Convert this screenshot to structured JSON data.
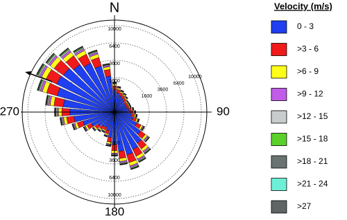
{
  "chart_data": {
    "type": "windrose",
    "direction_labels": {
      "north": "N",
      "east": "90",
      "south": "180",
      "west": "270"
    },
    "legend_title": "Velocity (m/s)",
    "x": [
      0,
      10,
      20,
      30,
      40,
      50,
      60,
      70,
      80,
      90,
      100,
      110,
      120,
      130,
      140,
      150,
      160,
      170,
      180,
      190,
      200,
      210,
      220,
      230,
      240,
      250,
      260,
      270,
      280,
      290,
      300,
      310,
      320,
      330,
      340,
      350
    ],
    "rlim": [
      0,
      10000
    ],
    "rscale": "sqrt",
    "rticks": [
      1600,
      3600,
      6400,
      10000
    ],
    "grid": true,
    "series": [
      {
        "name": "0 - 3",
        "color": "#1f3ff0",
        "values": [
          660,
          495,
          385,
          330,
          275,
          220,
          220,
          220,
          275,
          330,
          385,
          495,
          825,
          1375,
          1980,
          2310,
          2640,
          2090,
          1430,
          880,
          495,
          385,
          440,
          550,
          880,
          1430,
          2200,
          2640,
          3520,
          4730,
          5500,
          5280,
          4620,
          3960,
          3080,
          1760
        ]
      },
      {
        "name": ">3 - 6",
        "color": "#f01a1a",
        "values": [
          264,
          198,
          154,
          132,
          110,
          88,
          88,
          88,
          110,
          132,
          154,
          198,
          330,
          550,
          792,
          924,
          1056,
          836,
          572,
          352,
          198,
          154,
          176,
          220,
          352,
          572,
          880,
          1056,
          1408,
          1892,
          2200,
          2112,
          1848,
          1584,
          1232,
          704
        ]
      },
      {
        "name": ">6 - 9",
        "color": "#ffff1a",
        "values": [
          120,
          90,
          70,
          60,
          50,
          40,
          40,
          40,
          50,
          60,
          70,
          90,
          150,
          250,
          360,
          420,
          480,
          380,
          260,
          160,
          90,
          70,
          80,
          100,
          160,
          260,
          400,
          480,
          640,
          860,
          1000,
          960,
          840,
          720,
          560,
          320
        ]
      },
      {
        "name": ">9 - 12",
        "color": "#c05ce8",
        "values": [
          60,
          45,
          35,
          30,
          25,
          20,
          20,
          20,
          25,
          30,
          35,
          45,
          75,
          125,
          180,
          210,
          240,
          190,
          130,
          80,
          45,
          35,
          40,
          50,
          80,
          130,
          200,
          240,
          320,
          430,
          500,
          480,
          420,
          360,
          280,
          160
        ]
      },
      {
        "name": ">12 - 15",
        "color": "#c8cccc",
        "values": [
          36,
          27,
          21,
          18,
          15,
          12,
          12,
          12,
          15,
          18,
          21,
          27,
          45,
          75,
          108,
          126,
          144,
          114,
          78,
          48,
          27,
          21,
          24,
          30,
          48,
          78,
          120,
          144,
          192,
          258,
          300,
          288,
          252,
          216,
          168,
          96
        ]
      },
      {
        "name": ">15 - 18",
        "color": "#5ad12a",
        "values": [
          24,
          18,
          14,
          12,
          10,
          8,
          8,
          8,
          10,
          12,
          14,
          18,
          30,
          50,
          72,
          84,
          96,
          76,
          52,
          32,
          18,
          14,
          16,
          20,
          32,
          52,
          80,
          96,
          128,
          172,
          200,
          192,
          168,
          144,
          112,
          64
        ]
      },
      {
        "name": ">18 - 21",
        "color": "#6b7272",
        "values": [
          18,
          14,
          11,
          9,
          8,
          6,
          6,
          6,
          8,
          9,
          11,
          14,
          23,
          38,
          54,
          63,
          72,
          57,
          39,
          24,
          14,
          11,
          12,
          15,
          24,
          39,
          60,
          72,
          96,
          129,
          150,
          144,
          126,
          108,
          84,
          48
        ]
      },
      {
        "name": ">21 - 24",
        "color": "#6ef0d8",
        "values": [
          6,
          5,
          4,
          3,
          3,
          2,
          2,
          2,
          3,
          3,
          4,
          5,
          8,
          13,
          18,
          21,
          24,
          19,
          13,
          8,
          5,
          4,
          4,
          5,
          8,
          13,
          20,
          24,
          32,
          43,
          50,
          48,
          42,
          36,
          28,
          16
        ]
      },
      {
        "name": ">27",
        "color": "#5f6464",
        "values": [
          12,
          9,
          7,
          6,
          5,
          4,
          4,
          4,
          5,
          6,
          7,
          9,
          15,
          25,
          36,
          42,
          48,
          38,
          26,
          16,
          9,
          7,
          8,
          10,
          16,
          26,
          40,
          48,
          64,
          86,
          100,
          96,
          84,
          72,
          56,
          32
        ]
      }
    ]
  }
}
